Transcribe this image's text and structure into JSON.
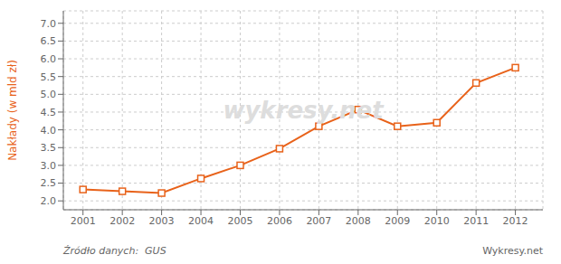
{
  "chart_data": {
    "type": "line",
    "ylabel": "Nakłady (w mld zł)",
    "x": [
      2001,
      2002,
      2003,
      2004,
      2005,
      2006,
      2007,
      2008,
      2009,
      2010,
      2011,
      2012
    ],
    "values": [
      2.32,
      2.27,
      2.22,
      2.63,
      3.0,
      3.47,
      4.1,
      4.57,
      4.1,
      4.2,
      5.32,
      5.75
    ],
    "color": "#e8621a",
    "marker": "square",
    "xlim": [
      2000.5,
      2012.7
    ],
    "xticks": [
      2001,
      2002,
      2003,
      2004,
      2005,
      2006,
      2007,
      2008,
      2009,
      2010,
      2011,
      2012
    ],
    "ylim": [
      1.75,
      7.35
    ],
    "yticks": [
      {
        "value": 2.0,
        "label": "2.0"
      },
      2.5,
      {
        "value": 3.0,
        "label": "3.0"
      },
      3.5,
      {
        "value": 4.0,
        "label": "4.0"
      },
      4.5,
      {
        "value": 5.0,
        "label": "5.0"
      },
      5.5,
      {
        "value": 6.0,
        "label": "6.0"
      },
      6.5,
      {
        "value": 7.0,
        "label": "7.0"
      }
    ],
    "grid": true,
    "annotations": [
      "Źródło danych:  GUS",
      "Wykresy.net",
      "wykresy.net"
    ]
  }
}
